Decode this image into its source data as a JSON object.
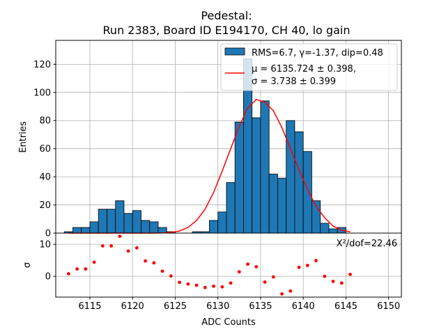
{
  "chart_data": [
    {
      "type": "bar",
      "title_line1": "Pedestal:",
      "title_line2": "Run 2383, Board ID E194170, CH 40, lo gain",
      "ylabel": "Entries",
      "xlim": [
        6111,
        6151.5
      ],
      "ylim": [
        0,
        137
      ],
      "yticks": [
        0,
        20,
        40,
        60,
        80,
        100,
        120
      ],
      "grid": true,
      "legend_position": "top-right",
      "histogram": {
        "name": "RMS=6.7, γ=-1.37, dip=0.48",
        "color": "#1f77b4",
        "bin_width": 1,
        "bin_starts": [
          6112,
          6113,
          6114,
          6115,
          6116,
          6117,
          6118,
          6119,
          6120,
          6121,
          6122,
          6123,
          6124,
          6125,
          6126,
          6127,
          6128,
          6129,
          6130,
          6131,
          6132,
          6133,
          6134,
          6135,
          6136,
          6137,
          6138,
          6139,
          6140,
          6141,
          6142,
          6143,
          6144,
          6145
        ],
        "counts": [
          1,
          4,
          4,
          8,
          17,
          17,
          23,
          14,
          16,
          9,
          8,
          4,
          1,
          0,
          0,
          1,
          1,
          9,
          15,
          36,
          79,
          124,
          82,
          94,
          42,
          39,
          80,
          72,
          58,
          23,
          7,
          3,
          4,
          0
        ]
      },
      "fit": {
        "name_line1": "μ = 6135.724 ± 0.398,",
        "name_line2": "σ = 3.738 ± 0.399",
        "color": "#ff0000",
        "x": [
          6112.5,
          6113.5,
          6114.5,
          6115.5,
          6116.5,
          6117.5,
          6118.5,
          6119.5,
          6120.5,
          6121.5,
          6122.5,
          6123.5,
          6124.5,
          6125.5,
          6126.5,
          6127.5,
          6128.5,
          6129.5,
          6130.5,
          6131.5,
          6132.5,
          6133.5,
          6134.5,
          6135.5,
          6136.5,
          6137.5,
          6138.5,
          6139.5,
          6140.5,
          6141.5,
          6142.5,
          6143.5,
          6144.5,
          6145.5
        ],
        "y": [
          0,
          0,
          0,
          0,
          0,
          0,
          0,
          0,
          0,
          0,
          0,
          0.1,
          0.5,
          1.5,
          4,
          9,
          17,
          29,
          44,
          60,
          76,
          89,
          95,
          93,
          87,
          75,
          60,
          45,
          31,
          19,
          11,
          5,
          2,
          1
        ]
      }
    },
    {
      "type": "scatter",
      "xlabel": "ADC Counts",
      "ylabel": "σ",
      "xlim": [
        6111,
        6151.5
      ],
      "ylim": [
        -6.5,
        13.5
      ],
      "xticks": [
        6115,
        6120,
        6125,
        6130,
        6135,
        6140,
        6145,
        6150
      ],
      "yticks": [
        0,
        10
      ],
      "grid": true,
      "annotation": "X²/dof=22.46",
      "color": "#ff0000",
      "x": [
        6112.5,
        6113.5,
        6114.5,
        6115.5,
        6116.5,
        6117.5,
        6118.5,
        6119.5,
        6120.5,
        6121.5,
        6122.5,
        6123.5,
        6124.5,
        6125.5,
        6126.5,
        6127.5,
        6128.5,
        6129.5,
        6130.5,
        6131.5,
        6132.5,
        6133.5,
        6134.5,
        6135.5,
        6136.5,
        6137.5,
        6138.5,
        6139.5,
        6140.5,
        6141.5,
        6142.5,
        6143.5,
        6144.5,
        6145.5
      ],
      "y": [
        0.8,
        2.3,
        2.3,
        4.4,
        9.5,
        9.5,
        12.5,
        7.9,
        8.9,
        4.8,
        4.2,
        1.6,
        0.1,
        -1.9,
        -2.4,
        -2.8,
        -3.5,
        -3.1,
        -3.3,
        -2.1,
        1.4,
        3.8,
        3.0,
        -1.8,
        -0.2,
        -5.5,
        -4.6,
        2.8,
        3.4,
        4.9,
        0.0,
        -1.6,
        -2.1,
        0.6
      ]
    }
  ]
}
